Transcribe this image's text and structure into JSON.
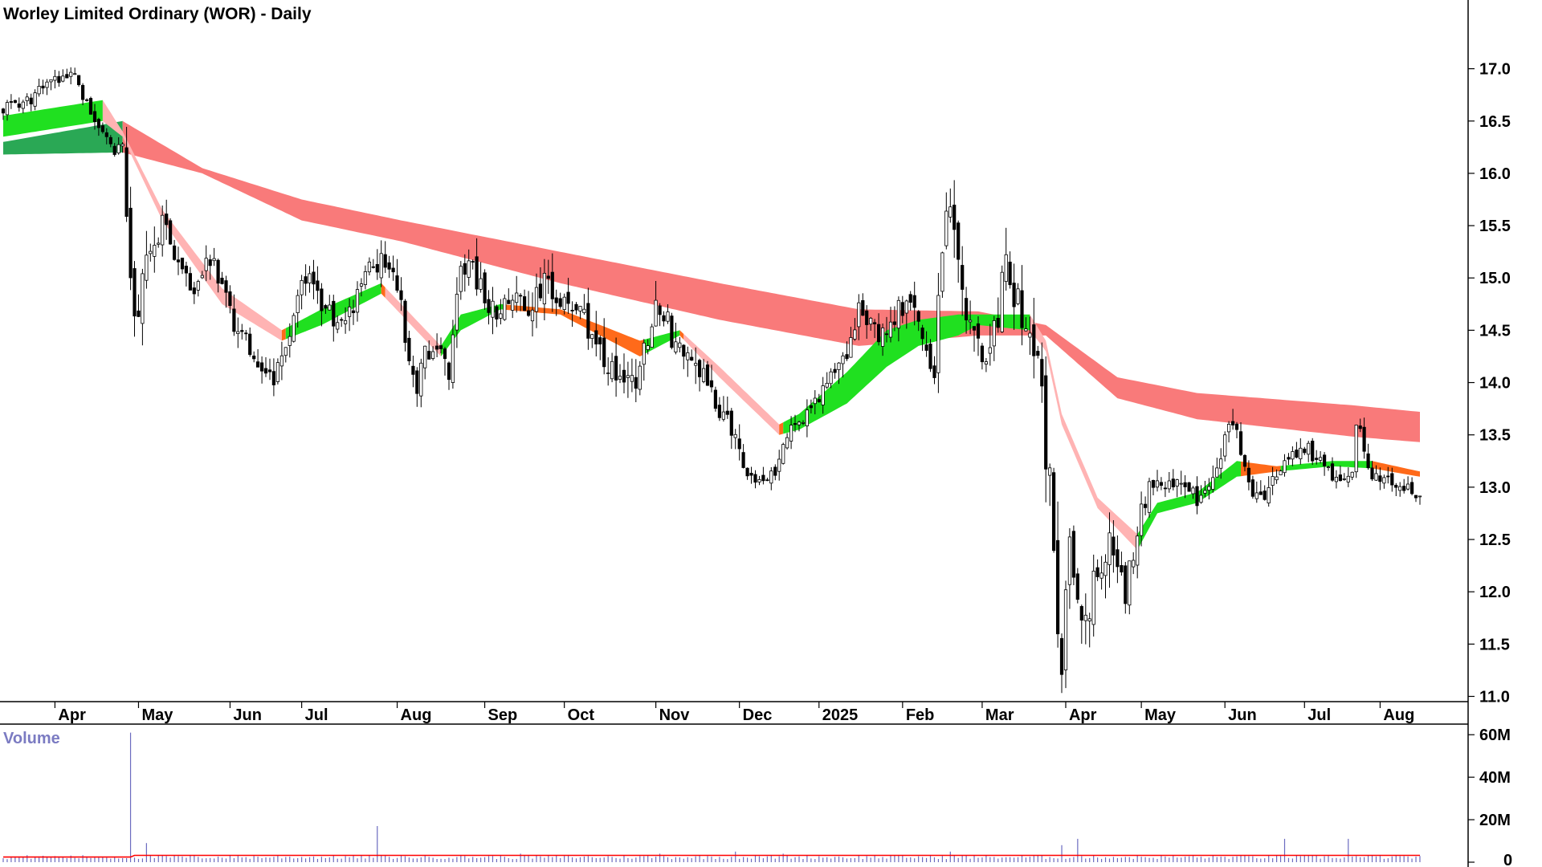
{
  "chart_data": {
    "type": "candlestick",
    "title": "Worley Limited Ordinary (WOR) - Daily",
    "price_axis": {
      "ticks": [
        "17.0",
        "16.5",
        "16.0",
        "15.5",
        "15.0",
        "14.5",
        "14.0",
        "13.5",
        "13.0",
        "12.5",
        "12.0",
        "11.5",
        "11.0"
      ],
      "range": [
        10.95,
        17.35
      ]
    },
    "x_axis": {
      "labels": [
        "Apr",
        "May",
        "Jun",
        "Jul",
        "Aug",
        "Sep",
        "Oct",
        "Nov",
        "Dec",
        "2025",
        "Feb",
        "Mar",
        "Apr",
        "May",
        "Jun",
        "Jul",
        "Aug"
      ],
      "label_index": [
        13,
        34,
        57,
        75,
        99,
        121,
        141,
        164,
        185,
        205,
        226,
        246,
        267,
        286,
        307,
        327,
        346
      ]
    },
    "volume_axis": {
      "label": "Volume",
      "ticks": [
        "60M",
        "40M",
        "20M",
        "0"
      ],
      "range": [
        0,
        65
      ]
    },
    "colors": {
      "up_candle": "#ffffff",
      "down_candle": "#000000",
      "short_band_up": "#20e020",
      "short_band_down": "#ff6a1a",
      "short_band_falling": "#ffb3b3",
      "long_band_up": "#2aa855",
      "long_band_down": "#f97a7a",
      "volume_bar": "#6b6bc0",
      "volume_avg": "#ff0000"
    },
    "anchors": {
      "close": [
        [
          0,
          16.62
        ],
        [
          6,
          16.68
        ],
        [
          12,
          16.88
        ],
        [
          18,
          16.95
        ],
        [
          22,
          16.55
        ],
        [
          26,
          16.4
        ],
        [
          28,
          16.2
        ],
        [
          30,
          16.3
        ],
        [
          32,
          15.05
        ],
        [
          33,
          14.6
        ],
        [
          36,
          15.1
        ],
        [
          40,
          15.55
        ],
        [
          44,
          15.1
        ],
        [
          48,
          14.82
        ],
        [
          52,
          15.2
        ],
        [
          55,
          14.9
        ],
        [
          58,
          14.55
        ],
        [
          62,
          14.35
        ],
        [
          66,
          14.1
        ],
        [
          68,
          13.95
        ],
        [
          70,
          14.3
        ],
        [
          73,
          14.6
        ],
        [
          76,
          15.05
        ],
        [
          80,
          14.75
        ],
        [
          84,
          14.55
        ],
        [
          88,
          14.75
        ],
        [
          92,
          15.1
        ],
        [
          96,
          15.15
        ],
        [
          99,
          14.95
        ],
        [
          100,
          14.75
        ],
        [
          102,
          14.2
        ],
        [
          104,
          13.95
        ],
        [
          106,
          14.25
        ],
        [
          108,
          14.4
        ],
        [
          112,
          14.1
        ],
        [
          115,
          15.2
        ],
        [
          118,
          15.05
        ],
        [
          121,
          14.8
        ],
        [
          125,
          14.65
        ],
        [
          128,
          14.8
        ],
        [
          132,
          14.75
        ],
        [
          136,
          14.95
        ],
        [
          140,
          14.7
        ],
        [
          144,
          14.8
        ],
        [
          148,
          14.35
        ],
        [
          152,
          14.15
        ],
        [
          156,
          13.9
        ],
        [
          160,
          14.1
        ],
        [
          163,
          14.6
        ],
        [
          164,
          14.85
        ],
        [
          168,
          14.45
        ],
        [
          172,
          14.25
        ],
        [
          176,
          14.05
        ],
        [
          180,
          13.75
        ],
        [
          184,
          13.45
        ],
        [
          188,
          13.1
        ],
        [
          192,
          13.05
        ],
        [
          195,
          13.25
        ],
        [
          197,
          13.45
        ],
        [
          200,
          13.65
        ],
        [
          204,
          13.8
        ],
        [
          208,
          14.05
        ],
        [
          212,
          14.3
        ],
        [
          215,
          14.7
        ],
        [
          218,
          14.55
        ],
        [
          222,
          14.45
        ],
        [
          226,
          14.75
        ],
        [
          229,
          14.65
        ],
        [
          232,
          14.35
        ],
        [
          234,
          14.05
        ],
        [
          236,
          15.35
        ],
        [
          238,
          15.7
        ],
        [
          239,
          15.3
        ],
        [
          241,
          14.95
        ],
        [
          244,
          14.4
        ],
        [
          247,
          14.2
        ],
        [
          250,
          14.65
        ],
        [
          252,
          15.15
        ],
        [
          254,
          14.9
        ],
        [
          257,
          14.55
        ],
        [
          259,
          14.35
        ],
        [
          261,
          13.95
        ],
        [
          262,
          13.25
        ],
        [
          263,
          13.0
        ],
        [
          264,
          12.5
        ],
        [
          265,
          11.75
        ],
        [
          266,
          11.35
        ],
        [
          267,
          12.05
        ],
        [
          268,
          12.45
        ],
        [
          270,
          12.0
        ],
        [
          272,
          11.7
        ],
        [
          274,
          12.1
        ],
        [
          276,
          12.3
        ],
        [
          278,
          12.45
        ],
        [
          280,
          12.2
        ],
        [
          282,
          12.0
        ],
        [
          284,
          12.4
        ],
        [
          286,
          12.75
        ],
        [
          288,
          13.05
        ],
        [
          292,
          12.95
        ],
        [
          296,
          13.1
        ],
        [
          300,
          12.9
        ],
        [
          304,
          13.1
        ],
        [
          306,
          13.3
        ],
        [
          308,
          13.65
        ],
        [
          310,
          13.5
        ],
        [
          312,
          13.2
        ],
        [
          314,
          12.95
        ],
        [
          317,
          12.9
        ],
        [
          320,
          13.15
        ],
        [
          324,
          13.3
        ],
        [
          328,
          13.35
        ],
        [
          332,
          13.2
        ],
        [
          336,
          13.05
        ],
        [
          339,
          13.2
        ],
        [
          340,
          13.65
        ],
        [
          342,
          13.35
        ],
        [
          344,
          13.1
        ],
        [
          348,
          13.05
        ],
        [
          352,
          13.0
        ],
        [
          355,
          12.95
        ]
      ],
      "range_pct": [
        [
          0,
          0.004
        ],
        [
          30,
          0.004
        ],
        [
          32,
          0.018
        ],
        [
          40,
          0.008
        ],
        [
          100,
          0.009
        ],
        [
          115,
          0.01
        ],
        [
          163,
          0.012
        ],
        [
          200,
          0.007
        ],
        [
          234,
          0.012
        ],
        [
          238,
          0.015
        ],
        [
          261,
          0.015
        ],
        [
          262,
          0.025
        ],
        [
          266,
          0.03
        ],
        [
          270,
          0.02
        ],
        [
          290,
          0.008
        ],
        [
          355,
          0.006
        ]
      ],
      "long_ema_top": [
        [
          0,
          16.3
        ],
        [
          30,
          16.5
        ],
        [
          50,
          16.05
        ],
        [
          75,
          15.75
        ],
        [
          100,
          15.55
        ],
        [
          140,
          15.25
        ],
        [
          180,
          14.95
        ],
        [
          215,
          14.7
        ],
        [
          245,
          14.68
        ],
        [
          262,
          14.55
        ],
        [
          280,
          14.05
        ],
        [
          300,
          13.9
        ],
        [
          340,
          13.78
        ],
        [
          356,
          13.72
        ]
      ],
      "long_ema_bottom": [
        [
          0,
          16.18
        ],
        [
          30,
          16.2
        ],
        [
          50,
          16.0
        ],
        [
          75,
          15.55
        ],
        [
          100,
          15.35
        ],
        [
          140,
          14.95
        ],
        [
          180,
          14.6
        ],
        [
          215,
          14.35
        ],
        [
          245,
          14.45
        ],
        [
          262,
          14.45
        ],
        [
          280,
          13.85
        ],
        [
          300,
          13.65
        ],
        [
          340,
          13.48
        ],
        [
          356,
          13.43
        ]
      ],
      "short_ema_top": [
        [
          0,
          16.55
        ],
        [
          25,
          16.7
        ],
        [
          30,
          16.4
        ],
        [
          40,
          15.65
        ],
        [
          55,
          14.9
        ],
        [
          70,
          14.5
        ],
        [
          80,
          14.7
        ],
        [
          95,
          14.95
        ],
        [
          100,
          14.75
        ],
        [
          110,
          14.35
        ],
        [
          115,
          14.65
        ],
        [
          125,
          14.75
        ],
        [
          140,
          14.7
        ],
        [
          160,
          14.4
        ],
        [
          170,
          14.5
        ],
        [
          180,
          14.15
        ],
        [
          195,
          13.6
        ],
        [
          200,
          13.7
        ],
        [
          212,
          14.1
        ],
        [
          222,
          14.5
        ],
        [
          230,
          14.6
        ],
        [
          240,
          14.65
        ],
        [
          245,
          14.65
        ],
        [
          258,
          14.65
        ],
        [
          262,
          14.4
        ],
        [
          266,
          13.7
        ],
        [
          275,
          12.9
        ],
        [
          285,
          12.55
        ],
        [
          290,
          12.85
        ],
        [
          300,
          12.95
        ],
        [
          310,
          13.25
        ],
        [
          320,
          13.2
        ],
        [
          334,
          13.25
        ],
        [
          344,
          13.25
        ],
        [
          356,
          13.15
        ]
      ],
      "short_ema_bottom": [
        [
          0,
          16.35
        ],
        [
          25,
          16.5
        ],
        [
          30,
          16.35
        ],
        [
          40,
          15.55
        ],
        [
          55,
          14.75
        ],
        [
          70,
          14.4
        ],
        [
          80,
          14.55
        ],
        [
          95,
          14.85
        ],
        [
          100,
          14.65
        ],
        [
          110,
          14.25
        ],
        [
          115,
          14.5
        ],
        [
          125,
          14.7
        ],
        [
          140,
          14.65
        ],
        [
          160,
          14.25
        ],
        [
          170,
          14.45
        ],
        [
          180,
          14.05
        ],
        [
          195,
          13.5
        ],
        [
          200,
          13.55
        ],
        [
          212,
          13.8
        ],
        [
          222,
          14.15
        ],
        [
          230,
          14.35
        ],
        [
          240,
          14.45
        ],
        [
          245,
          14.55
        ],
        [
          258,
          14.5
        ],
        [
          262,
          14.3
        ],
        [
          266,
          13.6
        ],
        [
          275,
          12.8
        ],
        [
          285,
          12.4
        ],
        [
          290,
          12.75
        ],
        [
          300,
          12.85
        ],
        [
          310,
          13.1
        ],
        [
          320,
          13.15
        ],
        [
          334,
          13.2
        ],
        [
          344,
          13.18
        ],
        [
          356,
          13.1
        ]
      ],
      "volume": [
        [
          32,
          61
        ],
        [
          36,
          9
        ],
        [
          94,
          17
        ],
        [
          130,
          4
        ],
        [
          165,
          4
        ],
        [
          184,
          5
        ],
        [
          196,
          4
        ],
        [
          238,
          5
        ],
        [
          266,
          8
        ],
        [
          270,
          11
        ],
        [
          322,
          11
        ],
        [
          338,
          11
        ]
      ],
      "volume_base": 2.4
    },
    "n_bars": 357
  }
}
